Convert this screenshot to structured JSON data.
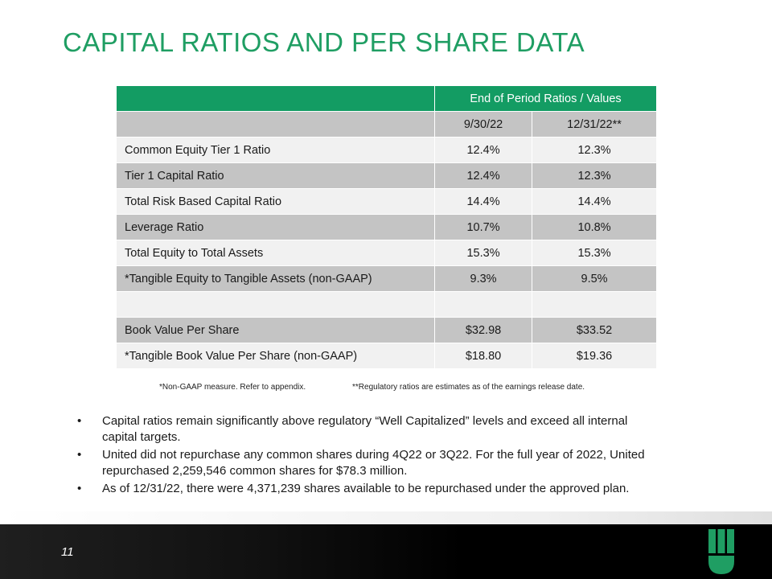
{
  "page": {
    "title": "CAPITAL RATIOS AND PER SHARE DATA",
    "page_number": "11"
  },
  "table": {
    "group_header": "End of Period Ratios / Values",
    "col1": "9/30/22",
    "col2": "12/31/22**",
    "rows": [
      {
        "label": "Common Equity Tier 1 Ratio",
        "v1": "12.4%",
        "v2": "12.3%"
      },
      {
        "label": "Tier 1 Capital Ratio",
        "v1": "12.4%",
        "v2": "12.3%"
      },
      {
        "label": "Total Risk Based Capital Ratio",
        "v1": "14.4%",
        "v2": "14.4%"
      },
      {
        "label": "Leverage Ratio",
        "v1": "10.7%",
        "v2": "10.8%"
      },
      {
        "label": "Total Equity to Total Assets",
        "v1": "15.3%",
        "v2": "15.3%"
      },
      {
        "label": "*Tangible Equity to Tangible Assets (non-GAAP)",
        "v1": "9.3%",
        "v2": "9.5%"
      },
      {
        "label": "",
        "v1": "",
        "v2": ""
      },
      {
        "label": "Book Value Per Share",
        "v1": "$32.98",
        "v2": "$33.52"
      },
      {
        "label": "*Tangible Book Value Per Share (non-GAAP)",
        "v1": "$18.80",
        "v2": "$19.36"
      }
    ]
  },
  "footnotes": {
    "left": "*Non-GAAP measure.  Refer to appendix.",
    "right": "**Regulatory ratios are estimates as of the earnings release date."
  },
  "bullets": [
    "Capital ratios remain significantly above regulatory “Well Capitalized” levels and exceed all internal capital targets.",
    "United did not repurchase any common shares during 4Q22 or 3Q22. For the full year of 2022, United repurchased 2,259,546 common shares for $78.3 million.",
    "As of 12/31/22, there were 4,371,239 shares available to be repurchased under the approved plan."
  ],
  "bullet_symbol": "•",
  "colors": {
    "accent": "#1f9e63",
    "table_header": "#139c63",
    "row_dark": "#c4c4c4",
    "row_light": "#f1f1f1"
  },
  "logo": {
    "icon": "united-bank-logo-icon"
  }
}
